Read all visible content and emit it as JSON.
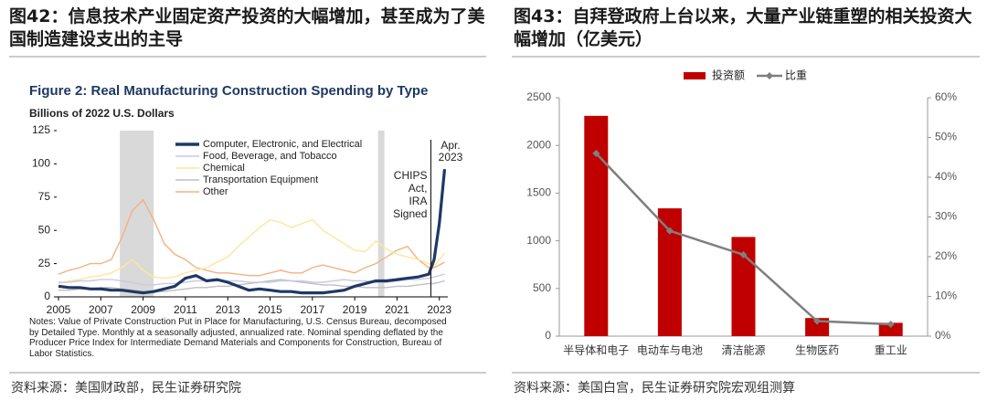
{
  "panels": [
    {
      "title": "图42：信息技术产业固定资产投资的大幅增加，甚至成为了美国制造建设支出的主导",
      "source": "资料来源：美国财政部，民生证券研究院"
    },
    {
      "title": "图43：自拜登政府上台以来，大量产业链重塑的相关投资大幅增加（亿美元）",
      "source": "资料来源：美国白宫，民生证券研究院宏观组测算"
    }
  ],
  "chart_data": [
    {
      "type": "line",
      "title": "Figure 2: Real Manufacturing Construction Spending by Type",
      "subtitle": "Billions of 2022 U.S. Dollars",
      "notes": "Notes: Value of Private Construction Put in Place for Manufacturing, U.S. Census Bureau, decomposed by Detailed Type. Monthly at a seasonally adjusted, annualized rate. Nominal spending deflated by the Producer Price Index for Intermediate Demand Materials and Components for Construction, Bureau of Labor Statistics.",
      "x": [
        2005,
        2005.5,
        2006,
        2006.5,
        2007,
        2007.5,
        2008,
        2008.5,
        2009,
        2009.5,
        2010,
        2010.5,
        2011,
        2011.5,
        2012,
        2012.5,
        2013,
        2013.5,
        2014,
        2014.5,
        2015,
        2015.5,
        2016,
        2016.5,
        2017,
        2017.5,
        2018,
        2018.5,
        2019,
        2019.5,
        2020,
        2020.5,
        2021,
        2021.5,
        2022,
        2022.5,
        2022.75,
        2023,
        2023.25
      ],
      "series": [
        {
          "name": "Computer, Electronic, and Electrical",
          "color": "#1f3864",
          "values": [
            8,
            7,
            7,
            6,
            6,
            5,
            5,
            4,
            3,
            4,
            6,
            8,
            14,
            16,
            12,
            13,
            11,
            8,
            5,
            6,
            5,
            4,
            4,
            3,
            3,
            3,
            4,
            5,
            8,
            10,
            12,
            12,
            13,
            14,
            15,
            17,
            28,
            55,
            96
          ]
        },
        {
          "name": "Food, Beverage, and Tobacco",
          "color": "#c9c9e8",
          "values": [
            11,
            11,
            12,
            12,
            13,
            13,
            12,
            11,
            9,
            9,
            10,
            10,
            11,
            12,
            12,
            12,
            12,
            12,
            11,
            11,
            11,
            12,
            12,
            12,
            11,
            11,
            12,
            13,
            12,
            12,
            11,
            11,
            12,
            13,
            13,
            14,
            15,
            16,
            17
          ]
        },
        {
          "name": "Chemical",
          "color": "#ffe699",
          "values": [
            10,
            12,
            13,
            15,
            16,
            18,
            22,
            28,
            20,
            15,
            14,
            15,
            18,
            20,
            22,
            26,
            30,
            38,
            45,
            52,
            58,
            56,
            52,
            55,
            58,
            50,
            45,
            40,
            35,
            34,
            42,
            36,
            32,
            30,
            28,
            25,
            23,
            28,
            33
          ]
        },
        {
          "name": "Transportation Equipment",
          "color": "#bfbfbf",
          "values": [
            5,
            5,
            6,
            6,
            7,
            7,
            6,
            5,
            4,
            4,
            4,
            5,
            6,
            7,
            7,
            8,
            8,
            9,
            10,
            11,
            12,
            13,
            12,
            11,
            10,
            9,
            9,
            8,
            8,
            7,
            7,
            7,
            8,
            8,
            9,
            10,
            10,
            11,
            12
          ]
        },
        {
          "name": "Other",
          "color": "#f4b183",
          "values": [
            17,
            20,
            22,
            25,
            25,
            28,
            45,
            65,
            73,
            58,
            40,
            32,
            28,
            22,
            20,
            18,
            18,
            17,
            16,
            16,
            18,
            20,
            18,
            18,
            22,
            24,
            22,
            20,
            18,
            22,
            25,
            30,
            35,
            38,
            28,
            22,
            22,
            24,
            26
          ]
        }
      ],
      "shaded_periods": [
        [
          2007.9,
          2009.5
        ],
        [
          2020.1,
          2020.4
        ]
      ],
      "shade_color": "#d9d9d9",
      "event": {
        "x": 2022.6,
        "lines": [
          "CHIPS",
          "Act,",
          "IRA",
          "Signed"
        ]
      },
      "end_label": [
        "Apr.",
        "2023"
      ],
      "xlim": [
        2005,
        2023.4
      ],
      "xticks": [
        2005,
        2007,
        2009,
        2011,
        2013,
        2015,
        2017,
        2019,
        2021,
        2023
      ],
      "ylim": [
        0,
        125
      ],
      "yticks": [
        0,
        25,
        50,
        75,
        100,
        125
      ],
      "legend": "top"
    },
    {
      "type": "combo",
      "categories": [
        "半导体和电子",
        "电动车与电池",
        "清洁能源",
        "生物医药",
        "重工业"
      ],
      "series": [
        {
          "name": "投资额",
          "type": "bar",
          "color": "#c00000",
          "values": [
            2310,
            1340,
            1040,
            190,
            140
          ]
        },
        {
          "name": "比重",
          "type": "line",
          "color": "#7f7f7f",
          "axis": "y2",
          "values": [
            46,
            26.5,
            20.5,
            3.8,
            3.0
          ]
        }
      ],
      "ylim": [
        0,
        2500
      ],
      "yticks": [
        0,
        500,
        1000,
        1500,
        2000,
        2500
      ],
      "y2lim": [
        0,
        60
      ],
      "y2ticks": [
        {
          "value": 0,
          "label": "0%"
        },
        {
          "value": 10,
          "label": "10%"
        },
        {
          "value": 20,
          "label": "20%"
        },
        {
          "value": 30,
          "label": "30%"
        },
        {
          "value": 40,
          "label": "40%"
        },
        {
          "value": 50,
          "label": "50%"
        },
        {
          "value": 60,
          "label": "60%"
        }
      ],
      "legend": "top"
    }
  ]
}
